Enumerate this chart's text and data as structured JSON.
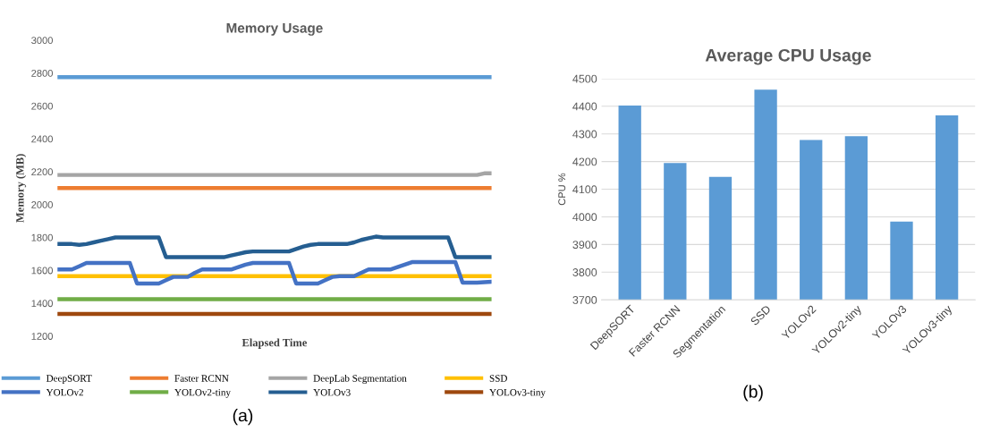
{
  "chart_data": [
    {
      "type": "line",
      "title": "Memory Usage",
      "xlabel": "Elapsed Time",
      "ylabel": "Memory (MB)",
      "categories": [
        null,
        null,
        null,
        null,
        null,
        null,
        null,
        null,
        null,
        null,
        null,
        null,
        null,
        null,
        null,
        null,
        null,
        null,
        null,
        null,
        null,
        null,
        null,
        null,
        null,
        null,
        null,
        null,
        null,
        null,
        null,
        null,
        null,
        null,
        null,
        null,
        null,
        null,
        null,
        null,
        null,
        null,
        null,
        null,
        null,
        null,
        null,
        null,
        null,
        null,
        null,
        null,
        null,
        null,
        null,
        null,
        null,
        null,
        null,
        null,
        null
      ],
      "ylim": [
        1200,
        3000
      ],
      "yticks": [
        1200,
        1400,
        1600,
        1800,
        2000,
        2200,
        2400,
        2600,
        2800,
        3000
      ],
      "tick_labels": "y",
      "grid": false,
      "legend": "bottom",
      "marker": "none",
      "line_style": "solid",
      "annotations": [
        "(a)"
      ],
      "series": [
        {
          "name": "DeepSORT",
          "color": "#5b9bd5",
          "values": [
            2775,
            2775,
            2775,
            2775,
            2775,
            2775,
            2775,
            2775,
            2775,
            2775,
            2775,
            2775,
            2775,
            2775,
            2775,
            2775,
            2775,
            2775,
            2775,
            2775,
            2775,
            2775,
            2775,
            2775,
            2775,
            2775,
            2775,
            2775,
            2775,
            2775,
            2775,
            2775,
            2775,
            2775,
            2775,
            2775,
            2775,
            2775,
            2775,
            2775,
            2775,
            2775,
            2775,
            2775,
            2775,
            2775,
            2775,
            2775,
            2775,
            2775,
            2775,
            2775,
            2775,
            2775,
            2775,
            2775,
            2775,
            2775,
            2775,
            2775,
            2775
          ]
        },
        {
          "name": "Faster RCNN",
          "color": "#ed7d31",
          "values": [
            2100,
            2100,
            2100,
            2100,
            2100,
            2100,
            2100,
            2100,
            2100,
            2100,
            2100,
            2100,
            2100,
            2100,
            2100,
            2100,
            2100,
            2100,
            2100,
            2100,
            2100,
            2100,
            2100,
            2100,
            2100,
            2100,
            2100,
            2100,
            2100,
            2100,
            2100,
            2100,
            2100,
            2100,
            2100,
            2100,
            2100,
            2100,
            2100,
            2100,
            2100,
            2100,
            2100,
            2100,
            2100,
            2100,
            2100,
            2100,
            2100,
            2100,
            2100,
            2100,
            2100,
            2100,
            2100,
            2100,
            2100,
            2100,
            2100,
            2100,
            2100
          ]
        },
        {
          "name": "DeepLab Segmentation",
          "color": "#a5a5a5",
          "values": [
            2180,
            2180,
            2180,
            2180,
            2180,
            2180,
            2180,
            2180,
            2180,
            2180,
            2180,
            2180,
            2180,
            2180,
            2180,
            2180,
            2180,
            2180,
            2180,
            2180,
            2180,
            2180,
            2180,
            2180,
            2180,
            2180,
            2180,
            2180,
            2180,
            2180,
            2180,
            2180,
            2180,
            2180,
            2180,
            2180,
            2180,
            2180,
            2180,
            2180,
            2180,
            2180,
            2180,
            2180,
            2180,
            2180,
            2180,
            2180,
            2180,
            2180,
            2180,
            2180,
            2180,
            2180,
            2180,
            2180,
            2180,
            2180,
            2180,
            2190,
            2190
          ]
        },
        {
          "name": "SSD",
          "color": "#ffc000",
          "values": [
            1565,
            1565,
            1565,
            1565,
            1565,
            1565,
            1565,
            1565,
            1565,
            1565,
            1565,
            1565,
            1565,
            1565,
            1565,
            1565,
            1565,
            1565,
            1565,
            1565,
            1565,
            1565,
            1565,
            1565,
            1565,
            1565,
            1565,
            1565,
            1565,
            1565,
            1565,
            1565,
            1565,
            1565,
            1565,
            1565,
            1565,
            1565,
            1565,
            1565,
            1565,
            1565,
            1565,
            1565,
            1565,
            1565,
            1565,
            1565,
            1565,
            1565,
            1565,
            1565,
            1565,
            1565,
            1565,
            1565,
            1565,
            1565,
            1565,
            1565,
            1565
          ]
        },
        {
          "name": "YOLOv2",
          "color": "#4472c4",
          "values": [
            1605,
            1605,
            1605,
            1625,
            1645,
            1645,
            1645,
            1645,
            1645,
            1645,
            1645,
            1520,
            1520,
            1520,
            1520,
            1540,
            1560,
            1560,
            1560,
            1585,
            1605,
            1605,
            1605,
            1605,
            1605,
            1620,
            1635,
            1645,
            1645,
            1645,
            1645,
            1645,
            1645,
            1520,
            1520,
            1520,
            1520,
            1540,
            1560,
            1565,
            1565,
            1565,
            1585,
            1605,
            1605,
            1605,
            1605,
            1620,
            1635,
            1650,
            1650,
            1650,
            1650,
            1650,
            1650,
            1650,
            1525,
            1525,
            1525,
            1528,
            1530
          ]
        },
        {
          "name": "YOLOv2-tiny",
          "color": "#70ad47",
          "values": [
            1425,
            1425,
            1425,
            1425,
            1425,
            1425,
            1425,
            1425,
            1425,
            1425,
            1425,
            1425,
            1425,
            1425,
            1425,
            1425,
            1425,
            1425,
            1425,
            1425,
            1425,
            1425,
            1425,
            1425,
            1425,
            1425,
            1425,
            1425,
            1425,
            1425,
            1425,
            1425,
            1425,
            1425,
            1425,
            1425,
            1425,
            1425,
            1425,
            1425,
            1425,
            1425,
            1425,
            1425,
            1425,
            1425,
            1425,
            1425,
            1425,
            1425,
            1425,
            1425,
            1425,
            1425,
            1425,
            1425,
            1425,
            1425,
            1425,
            1425,
            1425
          ]
        },
        {
          "name": "YOLOv3",
          "color": "#255e91",
          "values": [
            1760,
            1760,
            1760,
            1755,
            1760,
            1770,
            1780,
            1790,
            1800,
            1800,
            1800,
            1800,
            1800,
            1800,
            1800,
            1680,
            1680,
            1680,
            1680,
            1680,
            1680,
            1680,
            1680,
            1680,
            1690,
            1700,
            1710,
            1715,
            1715,
            1715,
            1715,
            1715,
            1715,
            1730,
            1745,
            1755,
            1760,
            1760,
            1760,
            1760,
            1760,
            1770,
            1785,
            1795,
            1805,
            1800,
            1800,
            1800,
            1800,
            1800,
            1800,
            1800,
            1800,
            1800,
            1800,
            1680,
            1680,
            1680,
            1680,
            1680,
            1680
          ]
        },
        {
          "name": "YOLOv3-tiny",
          "color": "#9e480e",
          "values": [
            1335,
            1335,
            1335,
            1335,
            1335,
            1335,
            1335,
            1335,
            1335,
            1335,
            1335,
            1335,
            1335,
            1335,
            1335,
            1335,
            1335,
            1335,
            1335,
            1335,
            1335,
            1335,
            1335,
            1335,
            1335,
            1335,
            1335,
            1335,
            1335,
            1335,
            1335,
            1335,
            1335,
            1335,
            1335,
            1335,
            1335,
            1335,
            1335,
            1335,
            1335,
            1335,
            1335,
            1335,
            1335,
            1335,
            1335,
            1335,
            1335,
            1335,
            1335,
            1335,
            1335,
            1335,
            1335,
            1335,
            1335,
            1335,
            1335,
            1335,
            1335
          ]
        }
      ]
    },
    {
      "type": "bar",
      "title": "Average CPU Usage",
      "ylabel": "CPU %",
      "categories": [
        "DeepSORT",
        "Faster RCNN",
        "Segmentation",
        "SSD",
        "YOLOv2",
        "YOLOv2-tiny",
        "YOLOv3",
        "YOLOv3-tiny"
      ],
      "values": [
        4403,
        4195,
        4145,
        4460,
        4278,
        4292,
        3983,
        4367
      ],
      "color": "#5b9bd5",
      "ylim": [
        3700,
        4500
      ],
      "yticks": [
        3700,
        3800,
        3900,
        4000,
        4100,
        4200,
        4300,
        4400,
        4500
      ],
      "grid": "y",
      "annotations": [
        "(b)"
      ]
    }
  ]
}
